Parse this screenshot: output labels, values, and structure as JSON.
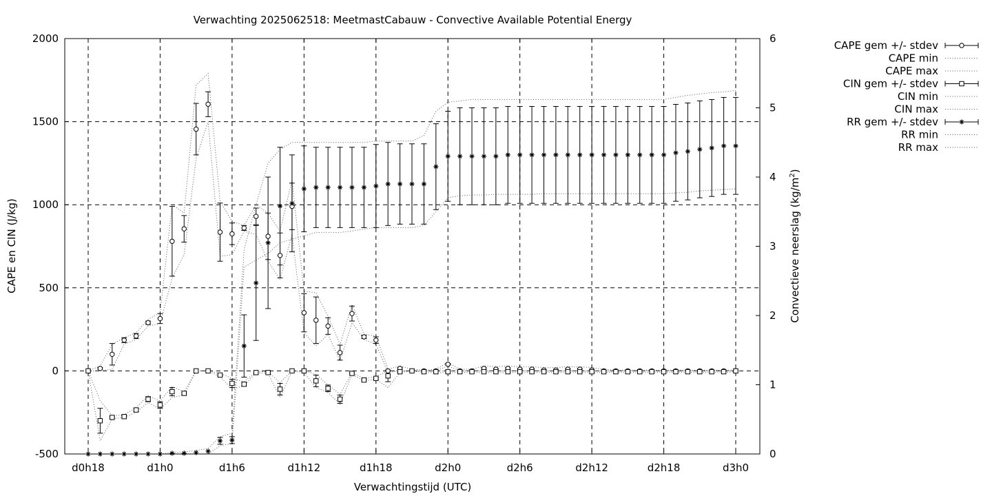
{
  "chart_data": {
    "type": "line",
    "title": "Verwachting 2025062518: MeetmastCabauw - Convective Available Potential Energy",
    "xlabel": "Verwachtingstijd (UTC)",
    "ylabel": "CAPE en CIN (J/kg)",
    "y2label_main": "Convectieve neerslag (kg/m",
    "y2label_sup": "2",
    "y2label_end": ")",
    "xlim": [
      18,
      72
    ],
    "ylim": [
      -500,
      2000
    ],
    "y2lim": [
      0,
      6
    ],
    "grid": true,
    "legend_position": "outside-right",
    "x_ticks": [
      {
        "x": 18,
        "label": "d0h18"
      },
      {
        "x": 24,
        "label": "d1h0"
      },
      {
        "x": 30,
        "label": "d1h6"
      },
      {
        "x": 36,
        "label": "d1h12"
      },
      {
        "x": 42,
        "label": "d1h18"
      },
      {
        "x": 48,
        "label": "d2h0"
      },
      {
        "x": 54,
        "label": "d2h6"
      },
      {
        "x": 60,
        "label": "d2h12"
      },
      {
        "x": 66,
        "label": "d2h18"
      },
      {
        "x": 72,
        "label": "d3h0"
      }
    ],
    "y_ticks": [
      {
        "v": -500,
        "label": "-500"
      },
      {
        "v": 0,
        "label": "0"
      },
      {
        "v": 500,
        "label": "500"
      },
      {
        "v": 1000,
        "label": "1000"
      },
      {
        "v": 1500,
        "label": "1500"
      },
      {
        "v": 2000,
        "label": "2000"
      }
    ],
    "y2_ticks": [
      {
        "v": 0,
        "label": "0"
      },
      {
        "v": 1,
        "label": "1"
      },
      {
        "v": 2,
        "label": "2"
      },
      {
        "v": 3,
        "label": "3"
      },
      {
        "v": 4,
        "label": "4"
      },
      {
        "v": 5,
        "label": "5"
      },
      {
        "v": 6,
        "label": "6"
      }
    ],
    "x": [
      18,
      19,
      20,
      21,
      22,
      23,
      24,
      25,
      26,
      27,
      28,
      29,
      30,
      31,
      32,
      33,
      34,
      35,
      36,
      37,
      38,
      39,
      40,
      41,
      42,
      43,
      44,
      45,
      46,
      47,
      48,
      49,
      50,
      51,
      52,
      53,
      54,
      55,
      56,
      57,
      58,
      59,
      60,
      61,
      62,
      63,
      64,
      65,
      66,
      67,
      68,
      69,
      70,
      71,
      72
    ],
    "series": [
      {
        "name": "CAPE gem +/- stdev",
        "axis": "y",
        "marker": "circle",
        "mean": [
          0,
          15,
          100,
          185,
          210,
          290,
          315,
          780,
          855,
          1455,
          1605,
          835,
          825,
          860,
          930,
          810,
          695,
          990,
          350,
          305,
          270,
          110,
          345,
          205,
          185,
          0,
          15,
          0,
          0,
          0,
          40,
          0,
          0,
          15,
          10,
          15,
          10,
          10,
          5,
          5,
          10,
          10,
          5,
          0,
          0,
          0,
          0,
          0,
          0,
          0,
          0,
          0,
          0,
          0,
          0
        ],
        "stdev": [
          0,
          5,
          65,
          15,
          15,
          10,
          30,
          210,
          80,
          155,
          75,
          175,
          65,
          15,
          50,
          140,
          135,
          140,
          115,
          140,
          50,
          45,
          45,
          10,
          20,
          0,
          5,
          0,
          0,
          0,
          5,
          0,
          0,
          5,
          5,
          5,
          5,
          5,
          5,
          5,
          5,
          5,
          5,
          0,
          0,
          0,
          0,
          0,
          0,
          0,
          0,
          0,
          0,
          0,
          0
        ]
      },
      {
        "name": "CAPE min",
        "axis": "y",
        "style": "dotted",
        "values": [
          0,
          0,
          10,
          160,
          190,
          270,
          285,
          560,
          700,
          1280,
          1500,
          690,
          700,
          840,
          820,
          660,
          550,
          820,
          230,
          150,
          220,
          60,
          290,
          190,
          160,
          -10,
          0,
          0,
          0,
          0,
          30,
          0,
          0,
          0,
          0,
          0,
          0,
          0,
          0,
          0,
          0,
          0,
          0,
          0,
          0,
          0,
          0,
          0,
          0,
          0,
          0,
          0,
          0,
          0,
          0
        ]
      },
      {
        "name": "CAPE max",
        "axis": "y",
        "style": "dotted",
        "values": [
          0,
          30,
          160,
          200,
          230,
          310,
          350,
          1000,
          950,
          1720,
          1790,
          1020,
          900,
          875,
          1000,
          950,
          840,
          1150,
          480,
          470,
          330,
          160,
          400,
          220,
          210,
          10,
          30,
          10,
          5,
          10,
          50,
          10,
          10,
          30,
          25,
          30,
          25,
          25,
          20,
          20,
          25,
          25,
          20,
          10,
          5,
          5,
          5,
          5,
          5,
          5,
          5,
          5,
          5,
          5,
          5
        ]
      },
      {
        "name": "CIN gem +/- stdev",
        "axis": "y",
        "marker": "square",
        "mean": [
          0,
          -300,
          -280,
          -275,
          -235,
          -170,
          -205,
          -125,
          -135,
          0,
          0,
          -25,
          -75,
          -80,
          -10,
          -10,
          -110,
          0,
          0,
          -60,
          -105,
          -170,
          -15,
          -55,
          -45,
          -30,
          -5,
          0,
          -5,
          -5,
          -5,
          -5,
          -5,
          -5,
          -5,
          -5,
          -5,
          -5,
          -5,
          -5,
          -5,
          -5,
          -5,
          -5,
          -5,
          -5,
          -5,
          -5,
          -5,
          -5,
          -5,
          -5,
          -5,
          -5,
          0
        ],
        "stdev": [
          0,
          75,
          5,
          5,
          10,
          15,
          20,
          25,
          5,
          0,
          0,
          5,
          25,
          10,
          0,
          5,
          35,
          0,
          0,
          35,
          20,
          25,
          5,
          5,
          5,
          35,
          5,
          0,
          0,
          0,
          0,
          0,
          0,
          0,
          0,
          0,
          0,
          0,
          0,
          0,
          0,
          0,
          0,
          0,
          0,
          0,
          0,
          0,
          0,
          0,
          0,
          0,
          0,
          0,
          0
        ]
      },
      {
        "name": "CIN min",
        "axis": "y",
        "style": "dotted",
        "values": [
          0,
          -420,
          -290,
          -280,
          -250,
          -190,
          -230,
          -160,
          -145,
          0,
          0,
          -35,
          -110,
          -90,
          -10,
          -15,
          -160,
          0,
          -10,
          -100,
          -130,
          -200,
          -20,
          -60,
          -50,
          -100,
          -10,
          0,
          -10,
          -10,
          -10,
          -10,
          -10,
          -10,
          -10,
          -10,
          -10,
          -10,
          -10,
          -10,
          -10,
          -10,
          -10,
          -10,
          -10,
          -10,
          -10,
          -10,
          -10,
          -10,
          -10,
          -10,
          -10,
          -10,
          -5
        ]
      },
      {
        "name": "CIN max",
        "axis": "y",
        "style": "dotted",
        "values": [
          0,
          -180,
          -270,
          -265,
          -220,
          -150,
          -180,
          -95,
          -125,
          0,
          0,
          -15,
          -45,
          -65,
          -5,
          -5,
          -70,
          0,
          0,
          -20,
          -85,
          -140,
          -10,
          -45,
          -35,
          0,
          0,
          0,
          0,
          0,
          0,
          0,
          0,
          0,
          0,
          0,
          0,
          0,
          0,
          0,
          0,
          0,
          0,
          0,
          0,
          0,
          0,
          0,
          0,
          0,
          0,
          0,
          0,
          0,
          0
        ]
      },
      {
        "name": "RR gem +/- stdev",
        "axis": "y2",
        "marker": "star",
        "mean": [
          0,
          0,
          0,
          0,
          0,
          0,
          0,
          0.01,
          0.01,
          0.02,
          0.04,
          0.19,
          0.2,
          1.56,
          2.47,
          3.05,
          3.58,
          3.62,
          3.83,
          3.85,
          3.85,
          3.85,
          3.85,
          3.85,
          3.87,
          3.9,
          3.9,
          3.9,
          3.9,
          4.15,
          4.3,
          4.3,
          4.3,
          4.3,
          4.3,
          4.32,
          4.32,
          4.32,
          4.32,
          4.32,
          4.32,
          4.32,
          4.32,
          4.32,
          4.32,
          4.32,
          4.32,
          4.32,
          4.32,
          4.35,
          4.37,
          4.4,
          4.42,
          4.45,
          4.45
        ],
        "stdev": [
          0,
          0,
          0,
          0,
          0,
          0,
          0,
          0,
          0,
          0,
          0,
          0.05,
          0.05,
          0.45,
          0.83,
          0.95,
          0.85,
          0.7,
          0.62,
          0.58,
          0.58,
          0.58,
          0.58,
          0.58,
          0.6,
          0.6,
          0.58,
          0.58,
          0.58,
          0.62,
          0.65,
          0.7,
          0.7,
          0.7,
          0.7,
          0.7,
          0.7,
          0.7,
          0.7,
          0.7,
          0.7,
          0.7,
          0.7,
          0.7,
          0.7,
          0.7,
          0.7,
          0.7,
          0.7,
          0.7,
          0.7,
          0.7,
          0.7,
          0.7,
          0.7
        ]
      },
      {
        "name": "RR min",
        "axis": "y2",
        "style": "dotted",
        "values": [
          0,
          0,
          0,
          0,
          0,
          0,
          0,
          0,
          0,
          0,
          0,
          0.12,
          0.15,
          2.7,
          2.8,
          2.9,
          3.05,
          3.1,
          3.15,
          3.2,
          3.2,
          3.2,
          3.22,
          3.25,
          3.27,
          3.27,
          3.27,
          3.27,
          3.3,
          3.5,
          3.7,
          3.73,
          3.74,
          3.74,
          3.75,
          3.75,
          3.75,
          3.75,
          3.76,
          3.76,
          3.76,
          3.76,
          3.76,
          3.76,
          3.76,
          3.76,
          3.76,
          3.76,
          3.76,
          3.77,
          3.78,
          3.8,
          3.81,
          3.82,
          3.83
        ]
      },
      {
        "name": "RR max",
        "axis": "y2",
        "style": "dotted",
        "values": [
          0,
          0,
          0,
          0,
          0,
          0,
          0,
          0.02,
          0.03,
          0.05,
          0.08,
          0.25,
          0.3,
          2.95,
          3.6,
          4.2,
          4.4,
          4.5,
          4.5,
          4.5,
          4.5,
          4.5,
          4.5,
          4.5,
          4.52,
          4.52,
          4.52,
          4.52,
          4.6,
          4.95,
          5.08,
          5.1,
          5.12,
          5.12,
          5.12,
          5.12,
          5.12,
          5.12,
          5.12,
          5.12,
          5.12,
          5.12,
          5.12,
          5.12,
          5.12,
          5.12,
          5.12,
          5.12,
          5.12,
          5.15,
          5.18,
          5.2,
          5.22,
          5.23,
          5.25
        ]
      }
    ]
  }
}
